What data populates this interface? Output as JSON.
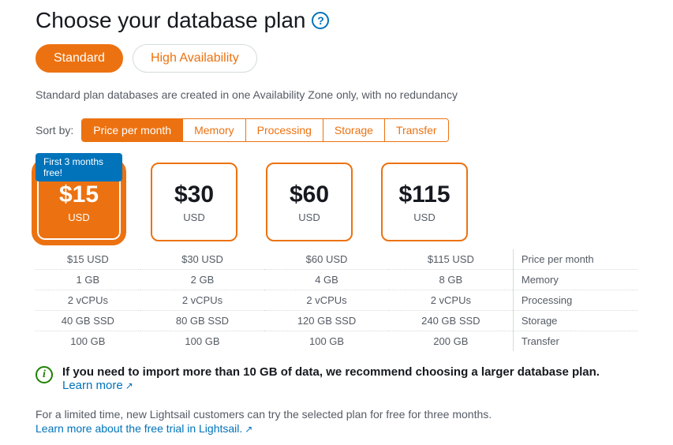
{
  "title": "Choose your database plan",
  "helpTooltip": "?",
  "planTabs": [
    {
      "label": "Standard",
      "active": true
    },
    {
      "label": "High Availability",
      "active": false
    }
  ],
  "description": "Standard plan databases are created in one Availability Zone only, with no redundancy",
  "sortLabel": "Sort by:",
  "sortOptions": [
    {
      "label": "Price per month",
      "active": true
    },
    {
      "label": "Memory",
      "active": false
    },
    {
      "label": "Processing",
      "active": false
    },
    {
      "label": "Storage",
      "active": false
    },
    {
      "label": "Transfer",
      "active": false
    }
  ],
  "badge": "First 3 months free!",
  "plans": [
    {
      "price": "$15",
      "currency": "USD",
      "selected": true
    },
    {
      "price": "$30",
      "currency": "USD",
      "selected": false
    },
    {
      "price": "$60",
      "currency": "USD",
      "selected": false
    },
    {
      "price": "$115",
      "currency": "USD",
      "selected": false
    }
  ],
  "specRows": [
    {
      "label": "Price per month",
      "values": [
        "$15 USD",
        "$30 USD",
        "$60 USD",
        "$115 USD"
      ]
    },
    {
      "label": "Memory",
      "values": [
        "1 GB",
        "2 GB",
        "4 GB",
        "8 GB"
      ]
    },
    {
      "label": "Processing",
      "values": [
        "2 vCPUs",
        "2 vCPUs",
        "2 vCPUs",
        "2 vCPUs"
      ]
    },
    {
      "label": "Storage",
      "values": [
        "40 GB SSD",
        "80 GB SSD",
        "120 GB SSD",
        "240 GB SSD"
      ]
    },
    {
      "label": "Transfer",
      "values": [
        "100 GB",
        "100 GB",
        "100 GB",
        "200 GB"
      ]
    }
  ],
  "infoBold": "If you need to import more than 10 GB of data, we recommend choosing a larger database plan.",
  "learnMore": "Learn more",
  "footerNote": "For a limited time, new Lightsail customers can try the selected plan for free for three months.",
  "footerLink": "Learn more about the free trial in Lightsail.",
  "colors": {
    "accent": "#ec7211",
    "link": "#0073bb",
    "success": "#1d8102",
    "muted": "#545b64"
  }
}
